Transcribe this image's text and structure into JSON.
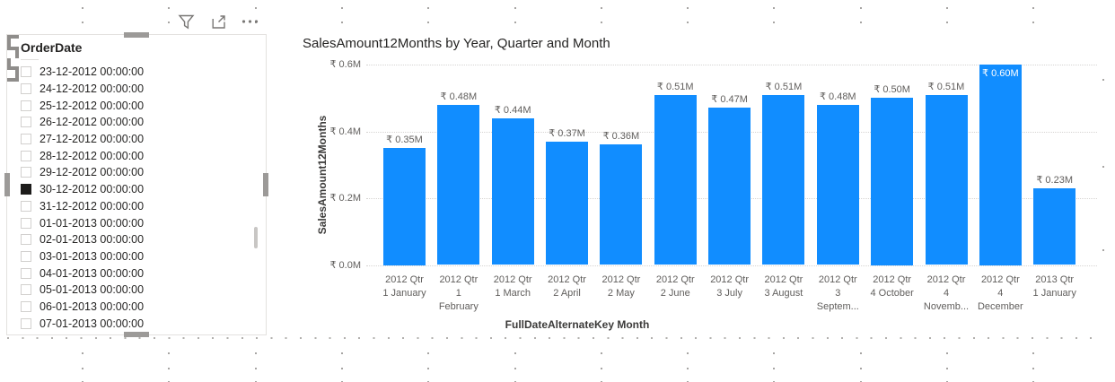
{
  "visual_header": {
    "icons": [
      {
        "name": "filter-icon",
        "tooltip": "Filters"
      },
      {
        "name": "focus-mode-icon",
        "tooltip": "Focus mode"
      },
      {
        "name": "more-options-icon",
        "tooltip": "More options"
      }
    ]
  },
  "slicer": {
    "title": "OrderDate",
    "items": [
      {
        "label": "23-12-2012 00:00:00",
        "checked": false
      },
      {
        "label": "24-12-2012 00:00:00",
        "checked": false
      },
      {
        "label": "25-12-2012 00:00:00",
        "checked": false
      },
      {
        "label": "26-12-2012 00:00:00",
        "checked": false
      },
      {
        "label": "27-12-2012 00:00:00",
        "checked": false
      },
      {
        "label": "28-12-2012 00:00:00",
        "checked": false
      },
      {
        "label": "29-12-2012 00:00:00",
        "checked": false
      },
      {
        "label": "30-12-2012 00:00:00",
        "checked": true
      },
      {
        "label": "31-12-2012 00:00:00",
        "checked": false
      },
      {
        "label": "01-01-2013 00:00:00",
        "checked": false
      },
      {
        "label": "02-01-2013 00:00:00",
        "checked": false
      },
      {
        "label": "03-01-2013 00:00:00",
        "checked": false
      },
      {
        "label": "04-01-2013 00:00:00",
        "checked": false
      },
      {
        "label": "05-01-2013 00:00:00",
        "checked": false
      },
      {
        "label": "06-01-2013 00:00:00",
        "checked": false
      },
      {
        "label": "07-01-2013 00:00:00",
        "checked": false
      }
    ]
  },
  "chart_data": {
    "type": "bar",
    "title": "SalesAmount12Months by Year, Quarter and Month",
    "xlabel": "FullDateAlternateKey Month",
    "ylabel": "SalesAmount12Months",
    "bar_color": "#118DFF",
    "ylim": [
      0,
      0.6
    ],
    "grid": "dotted-horizontal",
    "legend": "none",
    "yticks": [
      {
        "value": 0.6,
        "label": "₹ 0.6M"
      },
      {
        "value": 0.4,
        "label": "₹ 0.4M"
      },
      {
        "value": 0.2,
        "label": "₹ 0.2M"
      },
      {
        "value": 0.0,
        "label": "₹ 0.0M"
      }
    ],
    "categories": [
      "2012 Qtr 1 January",
      "2012 Qtr 1 February",
      "2012 Qtr 1 March",
      "2012 Qtr 2 April",
      "2012 Qtr 2 May",
      "2012 Qtr 2 June",
      "2012 Qtr 3 July",
      "2012 Qtr 3 August",
      "2012 Qtr 3 September",
      "2012 Qtr 4 October",
      "2012 Qtr 4 November",
      "2012 Qtr 4 December",
      "2013 Qtr 1 January"
    ],
    "category_label_lines": [
      [
        "2012 Qtr",
        "1 January"
      ],
      [
        "2012 Qtr",
        "1",
        "February"
      ],
      [
        "2012 Qtr",
        "1 March"
      ],
      [
        "2012 Qtr",
        "2 April"
      ],
      [
        "2012 Qtr",
        "2 May"
      ],
      [
        "2012 Qtr",
        "2 June"
      ],
      [
        "2012 Qtr",
        "3 July"
      ],
      [
        "2012 Qtr",
        "3 August"
      ],
      [
        "2012 Qtr",
        "3",
        "Septem..."
      ],
      [
        "2012 Qtr",
        "4 October"
      ],
      [
        "2012 Qtr",
        "4",
        "Novemb..."
      ],
      [
        "2012 Qtr",
        "4",
        "December"
      ],
      [
        "2013 Qtr",
        "1 January"
      ]
    ],
    "values": [
      0.35,
      0.48,
      0.44,
      0.37,
      0.36,
      0.51,
      0.47,
      0.51,
      0.48,
      0.5,
      0.51,
      0.6,
      0.23
    ],
    "data_labels": [
      "₹ 0.35M",
      "₹ 0.48M",
      "₹ 0.44M",
      "₹ 0.37M",
      "₹ 0.36M",
      "₹ 0.51M",
      "₹ 0.47M",
      "₹ 0.51M",
      "₹ 0.48M",
      "₹ 0.50M",
      "₹ 0.51M",
      "₹ 0.60M",
      "₹ 0.23M"
    ],
    "inside_label_index": 11
  }
}
